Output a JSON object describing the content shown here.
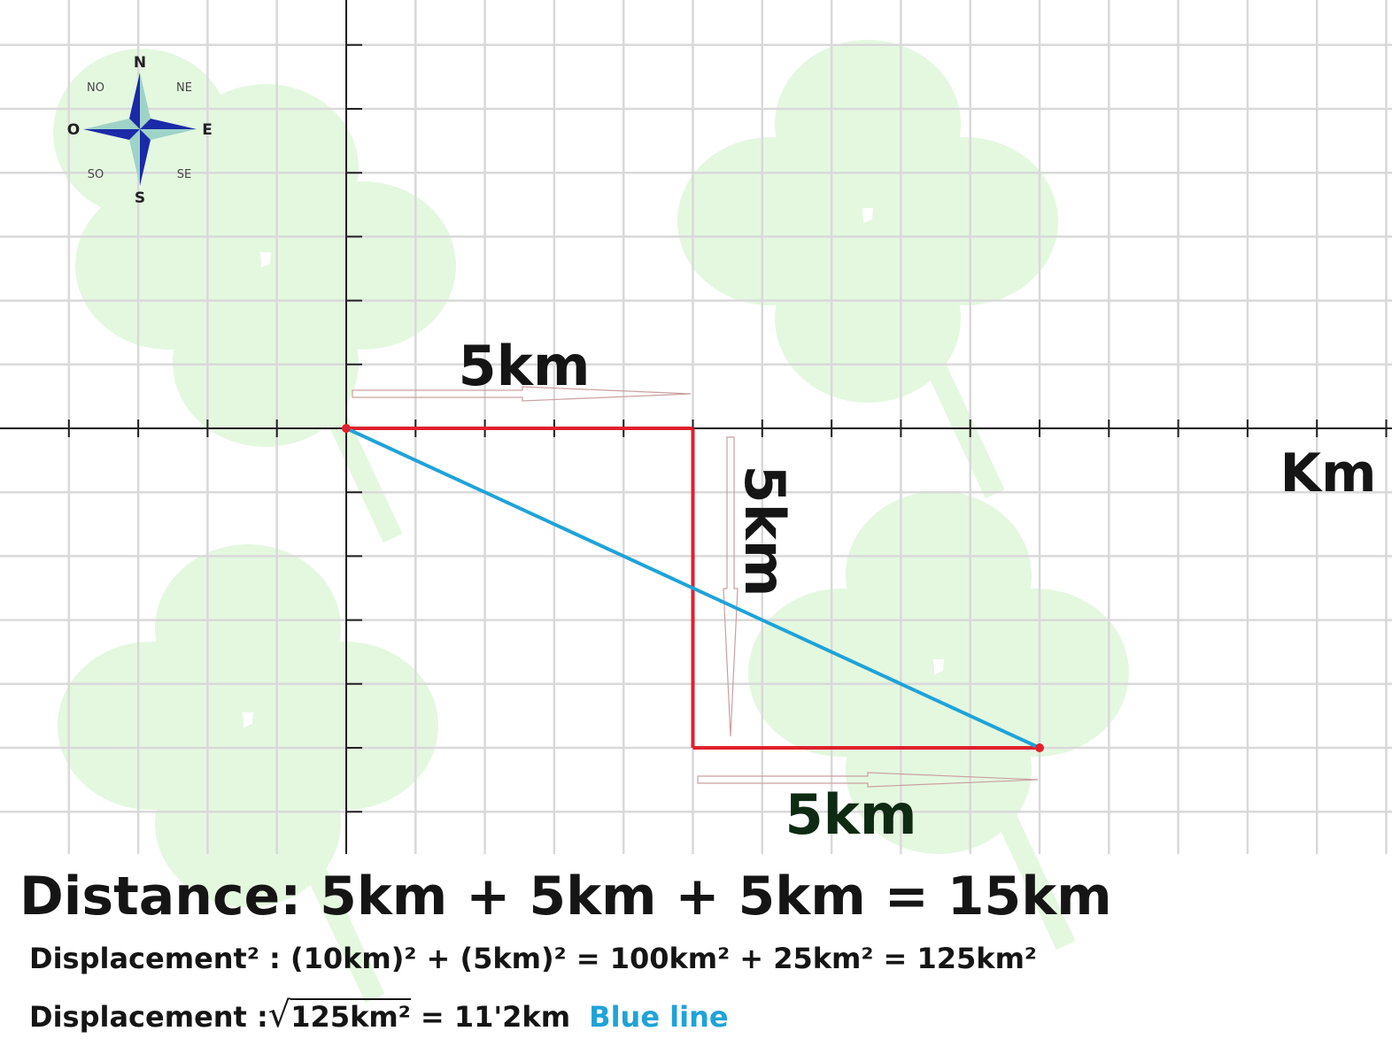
{
  "compass": {
    "n": "N",
    "ne": "NE",
    "e": "E",
    "se": "SE",
    "s": "S",
    "so": "SO",
    "o": "O",
    "no": "NO"
  },
  "axis_unit": "Km",
  "segments": [
    {
      "label": "5km",
      "direction": "east",
      "from": [
        0,
        0
      ],
      "to": [
        5,
        0
      ]
    },
    {
      "label": "5km",
      "direction": "south",
      "from": [
        5,
        0
      ],
      "to": [
        5,
        -5
      ]
    },
    {
      "label": "5km",
      "direction": "east",
      "from": [
        5,
        -5
      ],
      "to": [
        10,
        -5
      ]
    }
  ],
  "displacement_line": {
    "from": [
      0,
      0
    ],
    "to": [
      10,
      -5
    ]
  },
  "colors": {
    "path": "#e0202c",
    "displacement": "#1fa3d8",
    "grid": "#d9d9d9",
    "axis": "#222222",
    "clover": "#e4f8e0",
    "compass_dark": "#1a2aa8",
    "compass_light": "#9fd3c7",
    "compass_cyan": "#27b5e0"
  },
  "equations": {
    "distance": "Distance: 5km + 5km + 5km = 15km",
    "displacement_sq": "Displacement² : (10km)² + (5km)² = 100km² + 25km² = 125km²",
    "displacement_prefix": "Displacement :",
    "displacement_radicand": "125km²",
    "displacement_result": " = 11'2km",
    "blue_line_note": "Blue line"
  }
}
